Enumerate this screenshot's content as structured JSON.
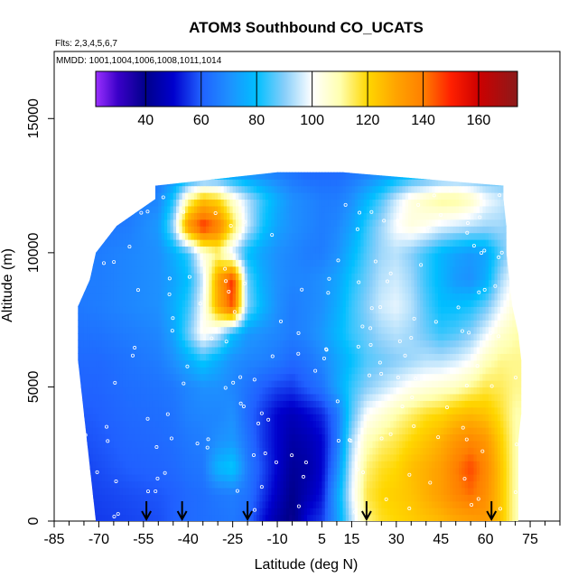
{
  "chart_data": {
    "type": "heatmap",
    "title": "ATOM3 Southbound CO_UCATS",
    "subtitle_flights": "Flts: 2,3,4,5,6,7",
    "subtitle_dates": "MMDD: 1001,1004,1006,1008,1011,1014",
    "xlabel": "Latitude (deg N)",
    "ylabel": "Altitude (m)",
    "xlim": [
      -85,
      85
    ],
    "ylim": [
      0,
      17500
    ],
    "x_major_ticks": [
      -85,
      -70,
      -55,
      -40,
      -25,
      -10,
      5,
      15,
      30,
      45,
      60,
      75
    ],
    "x_minor_ticks": [
      -80,
      -75,
      -65,
      -60,
      -50,
      -45,
      -35,
      -30,
      -20,
      -15,
      -5,
      0,
      10,
      20,
      25,
      35,
      40,
      50,
      55,
      65,
      70,
      80,
      85
    ],
    "y_ticks": [
      0,
      5000,
      10000,
      15000
    ],
    "colorbar": {
      "range": [
        22,
        174
      ],
      "ticks": [
        40,
        60,
        80,
        100,
        120,
        140,
        160
      ],
      "stops": [
        {
          "value": 22,
          "color": "#9b30ff"
        },
        {
          "value": 30,
          "color": "#3a00c8"
        },
        {
          "value": 40,
          "color": "#00008b"
        },
        {
          "value": 50,
          "color": "#0000cd"
        },
        {
          "value": 60,
          "color": "#2060ff"
        },
        {
          "value": 70,
          "color": "#1e90ff"
        },
        {
          "value": 80,
          "color": "#00bfff"
        },
        {
          "value": 90,
          "color": "#87cefa"
        },
        {
          "value": 100,
          "color": "#ffffff"
        },
        {
          "value": 110,
          "color": "#ffffb0"
        },
        {
          "value": 120,
          "color": "#ffd700"
        },
        {
          "value": 130,
          "color": "#ffa500"
        },
        {
          "value": 140,
          "color": "#ff7f00"
        },
        {
          "value": 150,
          "color": "#ff2000"
        },
        {
          "value": 160,
          "color": "#cd0000"
        },
        {
          "value": 174,
          "color": "#8b1a1a"
        }
      ]
    },
    "lat_nodes": [
      -85,
      -70,
      -60,
      -50,
      -45,
      -40,
      -35,
      -30,
      -25,
      -20,
      -15,
      -10,
      -5,
      0,
      5,
      10,
      15,
      20,
      25,
      30,
      35,
      40,
      45,
      50,
      55,
      60,
      65,
      70
    ],
    "alt_nodes": [
      0,
      1000,
      2000,
      3000,
      4000,
      5000,
      6000,
      7000,
      8000,
      9000,
      10000,
      11000,
      12000,
      13000
    ],
    "co_values": [
      [
        55,
        56,
        57,
        58,
        60,
        62,
        63,
        64,
        65,
        62,
        52,
        44,
        38,
        52,
        56,
        72,
        94,
        112,
        118,
        120,
        122,
        124,
        126,
        129,
        131,
        133,
        124,
        110
      ],
      [
        55,
        57,
        58,
        59,
        60,
        62,
        63,
        65,
        66,
        64,
        56,
        48,
        40,
        46,
        52,
        74,
        98,
        116,
        120,
        122,
        124,
        128,
        132,
        138,
        142,
        136,
        124,
        110
      ],
      [
        55,
        58,
        60,
        61,
        62,
        64,
        65,
        78,
        82,
        66,
        58,
        50,
        42,
        44,
        50,
        68,
        96,
        113,
        118,
        120,
        125,
        128,
        132,
        140,
        146,
        138,
        124,
        110
      ],
      [
        57,
        59,
        61,
        62,
        63,
        65,
        66,
        70,
        72,
        64,
        56,
        50,
        44,
        46,
        50,
        64,
        92,
        108,
        113,
        116,
        120,
        124,
        128,
        134,
        138,
        134,
        122,
        110
      ],
      [
        58,
        60,
        62,
        63,
        64,
        67,
        68,
        68,
        70,
        62,
        56,
        50,
        47,
        50,
        54,
        64,
        86,
        100,
        105,
        110,
        114,
        118,
        120,
        124,
        126,
        124,
        118,
        110
      ],
      [
        60,
        61,
        63,
        64,
        65,
        68,
        70,
        70,
        68,
        64,
        60,
        57,
        56,
        60,
        64,
        74,
        84,
        90,
        94,
        98,
        102,
        104,
        106,
        108,
        112,
        116,
        115,
        112
      ],
      [
        62,
        62,
        64,
        66,
        70,
        76,
        82,
        76,
        70,
        68,
        67,
        65,
        62,
        64,
        68,
        74,
        80,
        86,
        88,
        90,
        92,
        94,
        94,
        96,
        100,
        108,
        112,
        112
      ],
      [
        63,
        64,
        66,
        68,
        74,
        88,
        102,
        96,
        80,
        72,
        70,
        68,
        66,
        68,
        72,
        78,
        84,
        88,
        92,
        94,
        92,
        88,
        84,
        86,
        90,
        98,
        106,
        110
      ],
      [
        64,
        66,
        68,
        70,
        76,
        84,
        100,
        128,
        146,
        90,
        78,
        70,
        66,
        68,
        70,
        76,
        84,
        90,
        96,
        98,
        94,
        86,
        80,
        80,
        82,
        88,
        98,
        106
      ],
      [
        66,
        66,
        68,
        70,
        74,
        80,
        96,
        130,
        150,
        88,
        76,
        70,
        68,
        68,
        70,
        74,
        82,
        88,
        94,
        96,
        92,
        84,
        78,
        72,
        70,
        76,
        92,
        102
      ],
      [
        66,
        66,
        68,
        70,
        76,
        84,
        104,
        112,
        96,
        80,
        74,
        70,
        68,
        66,
        66,
        70,
        78,
        86,
        92,
        94,
        90,
        84,
        78,
        74,
        72,
        74,
        86,
        96
      ],
      [
        64,
        64,
        66,
        72,
        92,
        134,
        150,
        140,
        118,
        96,
        82,
        74,
        70,
        68,
        66,
        68,
        74,
        84,
        92,
        100,
        104,
        102,
        98,
        96,
        94,
        92,
        92,
        90
      ],
      [
        62,
        62,
        64,
        68,
        82,
        110,
        124,
        120,
        106,
        94,
        84,
        76,
        70,
        68,
        66,
        66,
        70,
        78,
        86,
        96,
        104,
        108,
        112,
        112,
        108,
        100,
        96,
        90
      ],
      [
        60,
        60,
        62,
        64,
        68,
        72,
        74,
        74,
        72,
        70,
        68,
        66,
        64,
        62,
        62,
        62,
        64,
        66,
        70,
        74,
        78,
        80,
        82,
        84,
        84,
        84,
        84,
        84
      ]
    ],
    "coverage": [
      {
        "alt": 0,
        "lat_min": -71,
        "lat_max": 71
      },
      {
        "alt": 1000,
        "lat_min": -72,
        "lat_max": 71
      },
      {
        "alt": 2000,
        "lat_min": -73,
        "lat_max": 71
      },
      {
        "alt": 3000,
        "lat_min": -74,
        "lat_max": 71
      },
      {
        "alt": 4000,
        "lat_min": -75,
        "lat_max": 72
      },
      {
        "alt": 5000,
        "lat_min": -76,
        "lat_max": 72
      },
      {
        "alt": 6000,
        "lat_min": -77,
        "lat_max": 72
      },
      {
        "alt": 7000,
        "lat_min": -77,
        "lat_max": 71
      },
      {
        "alt": 8000,
        "lat_min": -77,
        "lat_max": 69
      },
      {
        "alt": 9000,
        "lat_min": -73,
        "lat_max": 68
      },
      {
        "alt": 10000,
        "lat_min": -71,
        "lat_max": 67
      },
      {
        "alt": 11000,
        "lat_min": -64,
        "lat_max": 67
      },
      {
        "alt": 12000,
        "lat_min": -51,
        "lat_max": 66
      },
      {
        "alt": 12500,
        "lat_min": -51,
        "lat_max": 66
      },
      {
        "alt": 13000,
        "lat_min": -10,
        "lat_max": 12
      }
    ],
    "flight_arrows_lat": [
      -54,
      -42,
      -20,
      20,
      62
    ],
    "grid": false,
    "legend": "top"
  }
}
